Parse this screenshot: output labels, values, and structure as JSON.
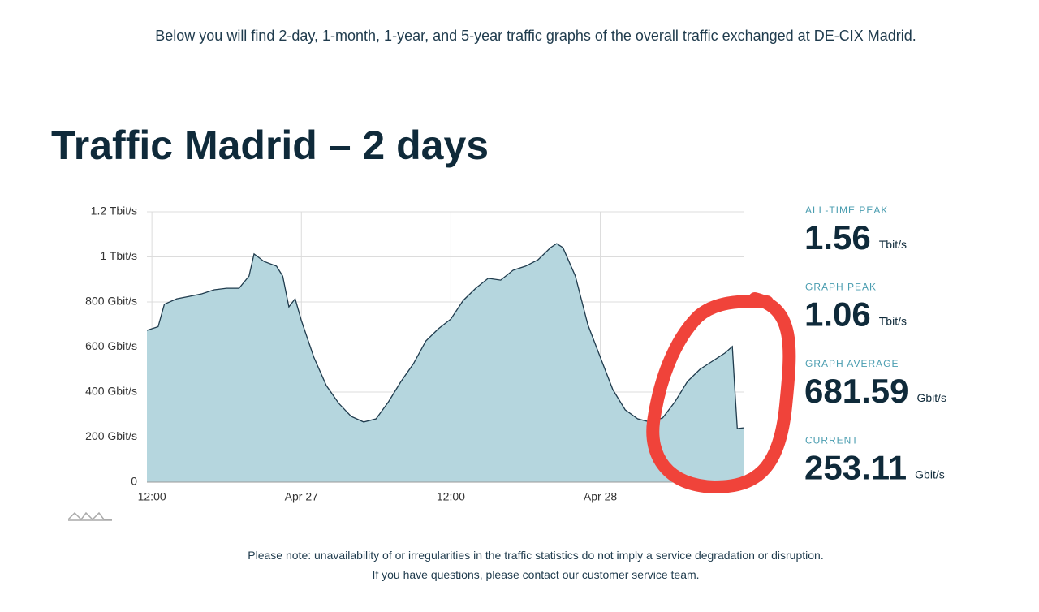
{
  "intro": "Below you will find 2-day, 1-month, 1-year, and 5-year traffic graphs of the overall traffic exchanged at DE-CIX Madrid.",
  "chart_data": {
    "type": "area",
    "title": "Traffic Madrid – 2 days",
    "x": [
      -0.4,
      0.5,
      1,
      2,
      3,
      4,
      5,
      6,
      7,
      7.8,
      8.2,
      9,
      10,
      10.5,
      11,
      11.5,
      12,
      13,
      14,
      15,
      16,
      17,
      18,
      19,
      20,
      21,
      22,
      23,
      24,
      25,
      26,
      27,
      28,
      29,
      30,
      31,
      32,
      32.5,
      33,
      34,
      35,
      36,
      37,
      38,
      39,
      40,
      41,
      42,
      43,
      44,
      45,
      46,
      46.6,
      46.8,
      47,
      47.5
    ],
    "values": [
      674,
      690,
      790,
      814,
      825,
      836,
      854,
      861,
      861,
      915,
      1013,
      980,
      959,
      915,
      778,
      814,
      717,
      555,
      429,
      350,
      292,
      267,
      281,
      357,
      447,
      526,
      627,
      681,
      724,
      807,
      861,
      905,
      897,
      941,
      959,
      987,
      1041,
      1059,
      1041,
      915,
      699,
      555,
      411,
      321,
      281,
      267,
      285,
      357,
      447,
      501,
      537,
      573,
      602,
      411,
      238,
      241
    ],
    "color": "#b5d6de",
    "line_color": "#1f3b4d",
    "xlim": [
      -0.4,
      47.5
    ],
    "xticks": [
      {
        "value": 0,
        "label": "12:00"
      },
      {
        "value": 12,
        "label": "Apr 27"
      },
      {
        "value": 24,
        "label": "12:00"
      },
      {
        "value": 36,
        "label": "Apr 28"
      }
    ],
    "ylim": [
      0,
      1200
    ],
    "yticks": [
      0,
      {
        "value": 200,
        "label": "200 Gbit/s"
      },
      {
        "value": 400,
        "label": "400 Gbit/s"
      },
      {
        "value": 600,
        "label": "600 Gbit/s"
      },
      {
        "value": 800,
        "label": "800 Gbit/s"
      },
      {
        "value": 1000,
        "label": "1 Tbit/s"
      },
      {
        "value": 1200,
        "label": "1.2 Tbit/s"
      }
    ],
    "grid": true
  },
  "stats": [
    {
      "label": "ALL-TIME PEAK",
      "value": "1.56",
      "unit": "Tbit/s"
    },
    {
      "label": "GRAPH PEAK",
      "value": "1.06",
      "unit": "Tbit/s"
    },
    {
      "label": "GRAPH AVERAGE",
      "value": "681.59",
      "unit": "Gbit/s"
    },
    {
      "label": "CURRENT",
      "value": "253.11",
      "unit": "Gbit/s"
    }
  ],
  "notes": [
    "Please note: unavailability of or irregularities in the traffic statistics do not imply a service degradation or disruption.",
    "If you have questions, please contact our customer service team."
  ]
}
